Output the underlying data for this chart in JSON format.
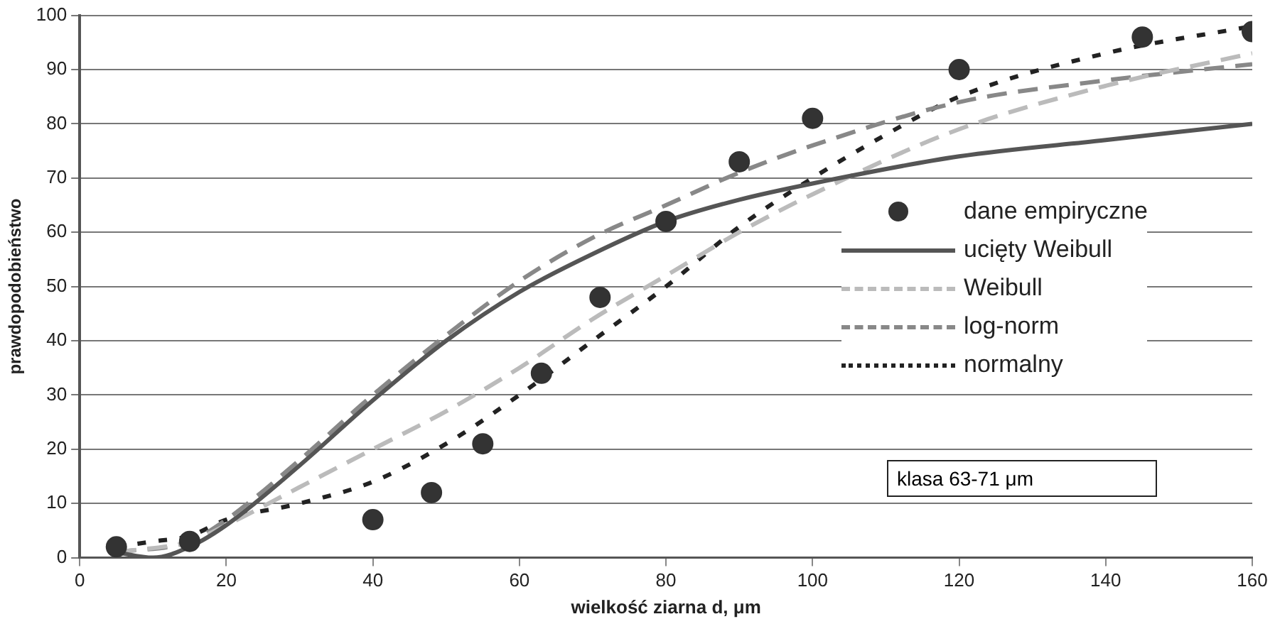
{
  "chart_data": {
    "type": "line",
    "xlabel": "wielkość ziarna d, μm",
    "ylabel": "prawdopodobieństwo",
    "xlim": [
      0,
      160
    ],
    "xticks": [
      0,
      20,
      40,
      60,
      80,
      100,
      120,
      140,
      160
    ],
    "ylim": [
      0,
      100
    ],
    "yticks": [
      0,
      10,
      20,
      30,
      40,
      50,
      60,
      70,
      80,
      90,
      100
    ],
    "grid": "y",
    "legend": "right",
    "annotations": [
      "klasa 63-71 μm"
    ],
    "series": [
      {
        "name": "dane empiryczne",
        "type": "scatter",
        "marker": "circle",
        "color": "#333333",
        "x": [
          5,
          15,
          40,
          48,
          55,
          63,
          71,
          80,
          90,
          100,
          120,
          145,
          160
        ],
        "values": [
          2,
          3,
          7,
          12,
          21,
          34,
          48,
          62,
          73,
          81,
          90,
          96,
          97
        ]
      },
      {
        "name": "ucięty Weibull",
        "type": "line",
        "marker": "none",
        "line_style": "solid",
        "color": "#555555",
        "x": [
          5,
          10,
          15,
          20,
          30,
          40,
          50,
          60,
          70,
          80,
          90,
          100,
          120,
          140,
          160
        ],
        "values": [
          1,
          0,
          2,
          6,
          17,
          29,
          40,
          49,
          56,
          62,
          66,
          69,
          74,
          77,
          80
        ]
      },
      {
        "name": "Weibull",
        "type": "line",
        "marker": "none",
        "line_style": "dashed",
        "color": "#bbbbbb",
        "x": [
          5,
          15,
          20,
          30,
          40,
          50,
          60,
          70,
          80,
          90,
          100,
          120,
          140,
          160
        ],
        "values": [
          1,
          3,
          6,
          13,
          20,
          27,
          35,
          44,
          52,
          60,
          67,
          79,
          87,
          93
        ]
      },
      {
        "name": "log-norm",
        "type": "line",
        "marker": "none",
        "line_style": "dashed",
        "color": "#888888",
        "x": [
          5,
          15,
          20,
          30,
          40,
          50,
          60,
          70,
          80,
          90,
          100,
          120,
          140,
          160
        ],
        "values": [
          1,
          3,
          7,
          18,
          30,
          41,
          51,
          59,
          65,
          71,
          76,
          84,
          88,
          91
        ]
      },
      {
        "name": "normalny",
        "type": "line",
        "marker": "none",
        "line_style": "dotted",
        "color": "#222222",
        "x": [
          5,
          10,
          15,
          20,
          30,
          40,
          50,
          60,
          70,
          80,
          90,
          100,
          110,
          120,
          140,
          160
        ],
        "values": [
          2,
          3,
          4,
          7,
          10,
          14,
          21,
          30,
          40,
          50,
          61,
          70,
          78,
          85,
          93,
          98
        ]
      }
    ]
  }
}
